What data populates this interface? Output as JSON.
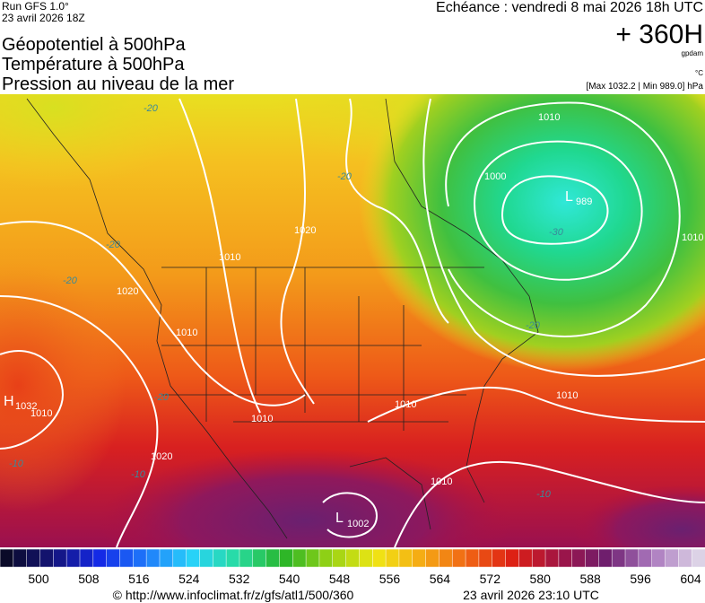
{
  "header": {
    "run": "Run GFS 1.0°",
    "run_date": "23 avril 2026 18Z",
    "titles": [
      "Géopotentiel à 500hPa",
      "Température à 500hPa",
      "Pression au niveau de la mer"
    ],
    "echeance": "Echéance : vendredi 8 mai 2026 18h UTC",
    "horizon": "+ 360H",
    "unit_geo": "gpdam",
    "unit_temp": "°C",
    "extremes": "[Max 1032.2 | Min 989.0] hPa"
  },
  "map": {
    "high": {
      "letter": "H",
      "value": "1032"
    },
    "low_north": {
      "letter": "L",
      "value": "989"
    },
    "low_south": {
      "letter": "L",
      "value": "1002"
    },
    "isobar_labels": [
      "1010",
      "1020",
      "1010",
      "1000",
      "1010",
      "1020",
      "1010",
      "1010",
      "1010",
      "1020",
      "1010",
      "1010",
      "1010"
    ],
    "temp_labels": [
      "-20",
      "-20",
      "-20",
      "-20",
      "-30",
      "-20",
      "-20",
      "-10",
      "-10",
      "-10"
    ]
  },
  "colorbar": {
    "ticks": [
      500,
      508,
      516,
      524,
      532,
      540,
      548,
      556,
      564,
      572,
      580,
      588,
      596,
      604
    ]
  },
  "footer": {
    "url": "© http://www.infoclimat.fr/z/gfs/atl1/500/360",
    "generated": "23 avril 2026 23:10 UTC"
  }
}
